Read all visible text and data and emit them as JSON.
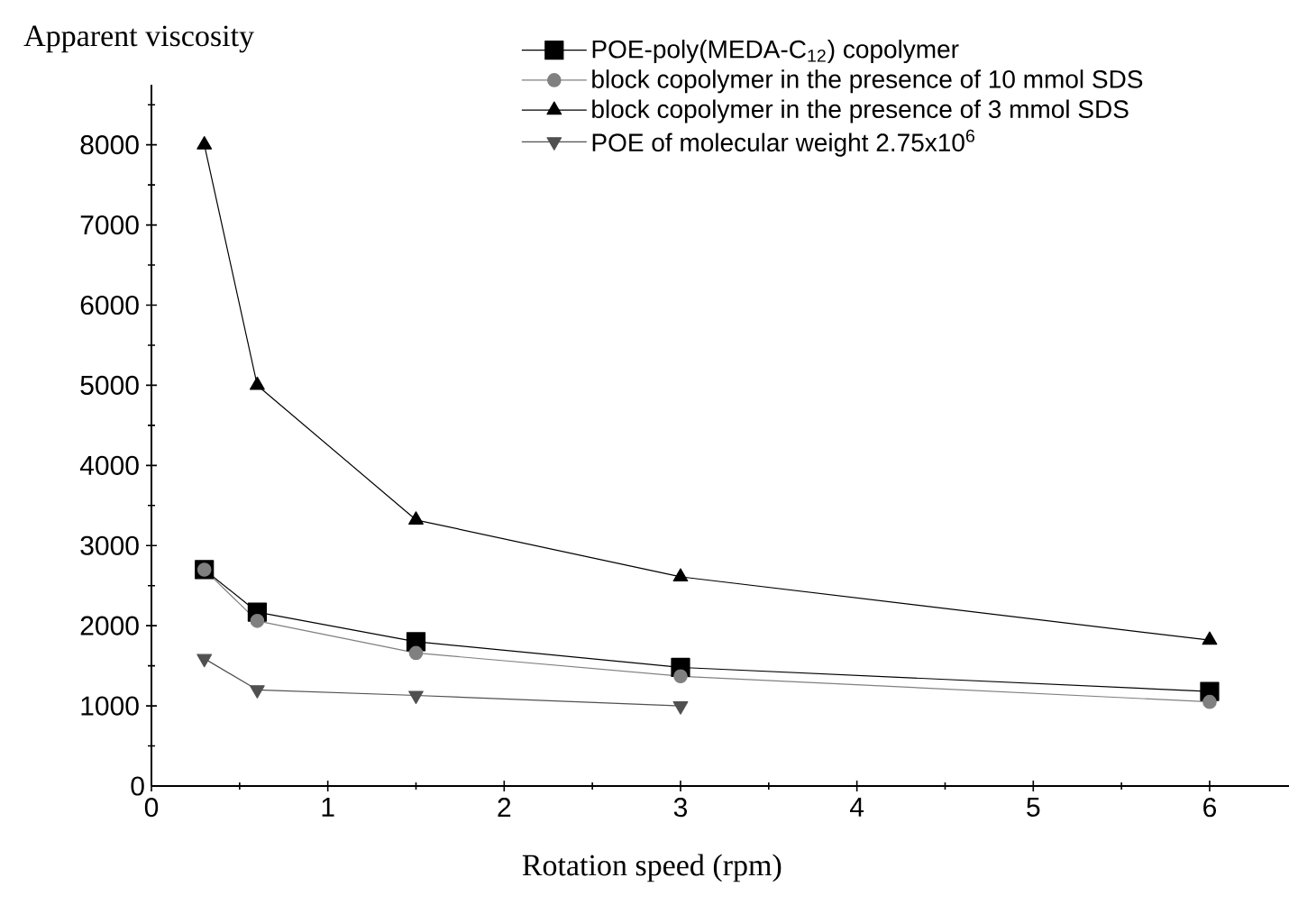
{
  "chart_data": {
    "type": "line",
    "xlabel": "Rotation speed (rpm)",
    "ylabel": "Apparent viscosity",
    "x": [
      0.3,
      0.6,
      1.5,
      3,
      6
    ],
    "series": [
      {
        "name": "POE-poly(MEDA-C$_{12}$) copolymer",
        "color": "#000000",
        "marker": "square",
        "values": [
          2700,
          2170,
          1800,
          1480,
          1180
        ]
      },
      {
        "name": "block copolymer in the presence of 10 mmol SDS",
        "color": "#808080",
        "marker": "circle",
        "values": [
          2700,
          2060,
          1660,
          1370,
          1050
        ]
      },
      {
        "name": "block copolymer in the presence of 3 mmol SDS",
        "color": "#000000",
        "marker": "triangle",
        "values": [
          8000,
          5000,
          3320,
          2610,
          1820
        ]
      },
      {
        "name": "POE of molecular weight 2.75x10$^{6}$",
        "color": "#505050",
        "marker": "triangle down",
        "x": [
          0.3,
          0.6,
          1.5,
          3
        ],
        "values": [
          1590,
          1200,
          1130,
          1000
        ]
      }
    ],
    "xlim": [
      0,
      6.45
    ],
    "ylim": [
      0,
      8750
    ],
    "xticks": [
      0,
      {
        "value": 0.5,
        "label": null
      },
      1,
      {
        "value": 1.5,
        "label": null
      },
      2,
      {
        "value": 2.5,
        "label": null
      },
      3,
      {
        "value": 3.5,
        "label": null
      },
      4,
      {
        "value": 4.5,
        "label": null
      },
      5,
      {
        "value": 5.5,
        "label": null
      },
      6
    ],
    "yticks": [
      0,
      {
        "value": 500,
        "label": null
      },
      1000,
      {
        "value": 1500,
        "label": null
      },
      2000,
      {
        "value": 2500,
        "label": null
      },
      3000,
      {
        "value": 3500,
        "label": null
      },
      4000,
      {
        "value": 4500,
        "label": null
      },
      5000,
      {
        "value": 5500,
        "label": null
      },
      6000,
      {
        "value": 6500,
        "label": null
      },
      7000,
      {
        "value": 7500,
        "label": null
      },
      8000,
      {
        "value": 8500,
        "label": null
      }
    ],
    "grid": false,
    "legend": "top right",
    "line_style": "solid"
  }
}
